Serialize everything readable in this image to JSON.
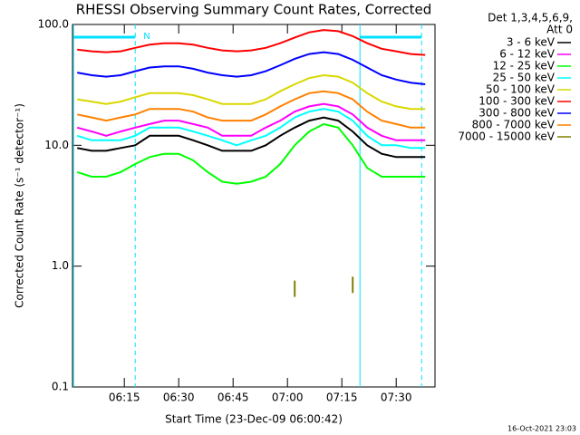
{
  "chart_data": {
    "type": "line",
    "title": "RHESSI Observing Summary Count Rates, Corrected",
    "x_label": "Start Time (23-Dec-09 06:00:42)",
    "y_label": "Corrected Count Rate (s⁻¹ detector⁻¹)",
    "legend_title": [
      "Det 1,3,4,5,6,9,",
      "Att 0"
    ],
    "legend_position": "right",
    "footer": "16-Oct-2021 23:03",
    "log_scale_y": true,
    "xlim": [
      "06:00:42",
      "07:40:42"
    ],
    "xticks": [
      "06:15",
      "06:30",
      "06:45",
      "07:00",
      "07:15",
      "07:30"
    ],
    "ylim": [
      0.1,
      100
    ],
    "yticks": [
      0.1,
      {
        "value": 1,
        "label": "1.0"
      },
      {
        "value": 10,
        "label": "10.0"
      },
      {
        "value": 100,
        "label": "100.0"
      }
    ],
    "night_label": "N",
    "night_color": "#00e0ff",
    "night": [
      {
        "start": "06:01",
        "end": "06:18"
      },
      {
        "start": "07:20",
        "end": "07:37"
      }
    ],
    "x": [
      "06:02",
      "06:06",
      "06:10",
      "06:14",
      "06:18",
      "06:22",
      "06:26",
      "06:30",
      "06:34",
      "06:38",
      "06:42",
      "06:46",
      "06:50",
      "06:54",
      "06:58",
      "07:02",
      "07:06",
      "07:10",
      "07:14",
      "07:18",
      "07:22",
      "07:26",
      "07:30",
      "07:34",
      "07:38"
    ],
    "series": [
      {
        "name": "3 - 6 keV",
        "color": "#000000",
        "values": [
          9.5,
          9,
          9,
          9.5,
          10,
          12,
          12,
          12,
          11,
          10,
          9,
          9,
          9,
          10,
          12,
          14,
          16,
          17,
          16,
          13,
          10,
          8.5,
          8,
          8,
          8
        ]
      },
      {
        "name": "6 - 12 keV",
        "color": "#ff00ff",
        "values": [
          14,
          13,
          12,
          13,
          14,
          15,
          16,
          16,
          15,
          14,
          12,
          12,
          12,
          14,
          16,
          19,
          21,
          22,
          21,
          18,
          14,
          12,
          11,
          11,
          11
        ]
      },
      {
        "name": "12 - 25 keV",
        "color": "#00ff00",
        "values": [
          6,
          5.5,
          5.5,
          6,
          7,
          8,
          8.5,
          8.5,
          7.5,
          6,
          5,
          4.8,
          5,
          5.5,
          7,
          10,
          13,
          15,
          14,
          10,
          6.5,
          5.5,
          5.5,
          5.5,
          5.5
        ]
      },
      {
        "name": "25 - 50 keV",
        "color": "#00ffff",
        "values": [
          12,
          11,
          11,
          11,
          12,
          14,
          14,
          14,
          13,
          12,
          11,
          10,
          11,
          12,
          14,
          17,
          19,
          20,
          19,
          16,
          12,
          10,
          10,
          9.5,
          9.5
        ]
      },
      {
        "name": "50 - 100 keV",
        "color": "#d8d800",
        "values": [
          24,
          23,
          22,
          23,
          25,
          27,
          27,
          27,
          26,
          24,
          22,
          22,
          22,
          24,
          28,
          32,
          36,
          38,
          37,
          33,
          27,
          23,
          21,
          20,
          20
        ]
      },
      {
        "name": "100 - 300 keV",
        "color": "#ff0000",
        "values": [
          62,
          60,
          59,
          60,
          64,
          68,
          70,
          70,
          68,
          64,
          61,
          60,
          61,
          64,
          70,
          78,
          86,
          90,
          88,
          80,
          70,
          63,
          60,
          57,
          56
        ]
      },
      {
        "name": "300 - 800 keV",
        "color": "#0000ff",
        "values": [
          40,
          38,
          37,
          38,
          41,
          44,
          45,
          45,
          43,
          40,
          38,
          37,
          38,
          41,
          46,
          52,
          57,
          59,
          57,
          51,
          44,
          38,
          35,
          33,
          32
        ]
      },
      {
        "name": "800 - 7000 keV",
        "color": "#ff8000",
        "values": [
          18,
          17,
          16,
          17,
          18,
          20,
          20,
          20,
          19,
          17,
          16,
          16,
          16,
          18,
          21,
          24,
          27,
          28,
          27,
          24,
          19,
          16,
          15,
          14,
          14
        ]
      },
      {
        "name": "7000 - 15000 keV",
        "color": "#808000",
        "values": [
          null,
          null,
          null,
          null,
          null,
          null,
          null,
          null,
          null,
          null,
          null,
          null,
          null,
          null,
          null,
          0.65,
          null,
          null,
          null,
          0.7,
          null,
          null,
          null,
          null,
          null
        ]
      }
    ]
  }
}
